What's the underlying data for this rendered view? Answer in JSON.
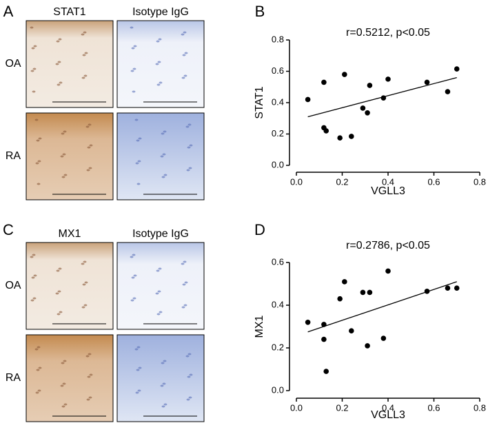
{
  "figure": {
    "panels": [
      "A",
      "B",
      "C",
      "D"
    ],
    "ihc": [
      {
        "columns": [
          "STAT1",
          "Isotype IgG"
        ],
        "rows": [
          "OA",
          "RA"
        ]
      },
      {
        "columns": [
          "MX1",
          "Isotype IgG"
        ],
        "rows": [
          "OA",
          "RA"
        ]
      }
    ]
  },
  "chart_data": [
    {
      "type": "scatter",
      "title": "r=0.5212, p<0.05",
      "x_label": "VGLL3",
      "y_label": "STAT1",
      "color": "#000000",
      "x": [
        0.05,
        0.12,
        0.12,
        0.13,
        0.19,
        0.21,
        0.24,
        0.29,
        0.31,
        0.32,
        0.38,
        0.4,
        0.57,
        0.66,
        0.7
      ],
      "y": [
        0.42,
        0.53,
        0.24,
        0.22,
        0.175,
        0.58,
        0.185,
        0.365,
        0.335,
        0.51,
        0.43,
        0.55,
        0.53,
        0.47,
        0.615
      ],
      "trendline": {
        "x": [
          0.05,
          0.7
        ],
        "y": [
          0.31,
          0.56
        ]
      },
      "xlim": [
        0,
        0.8
      ],
      "xticks": [
        {
          "value": 0,
          "label": "0.0"
        },
        0.2,
        0.4,
        0.6,
        0.8
      ],
      "ylim": [
        0,
        0.8
      ],
      "yticks": [
        {
          "value": 0,
          "label": "0.0"
        },
        0.2,
        0.4,
        0.6,
        0.8
      ]
    },
    {
      "type": "scatter",
      "title": "r=0.2786, p<0.05",
      "x_label": "VGLL3",
      "y_label": "MX1",
      "color": "#000000",
      "x": [
        0.05,
        0.12,
        0.12,
        0.13,
        0.19,
        0.21,
        0.24,
        0.29,
        0.31,
        0.32,
        0.38,
        0.4,
        0.57,
        0.66,
        0.7
      ],
      "y": [
        0.32,
        0.24,
        0.31,
        0.09,
        0.43,
        0.51,
        0.28,
        0.46,
        0.21,
        0.46,
        0.245,
        0.56,
        0.465,
        0.48,
        0.48
      ],
      "trendline": {
        "x": [
          0.05,
          0.7
        ],
        "y": [
          0.275,
          0.51
        ]
      },
      "xlim": [
        0,
        0.8
      ],
      "xticks": [
        {
          "value": 0,
          "label": "0.0"
        },
        0.2,
        0.4,
        0.6,
        0.8
      ],
      "ylim": [
        0,
        0.6
      ],
      "yticks": [
        {
          "value": 0,
          "label": "0.0"
        },
        0.2,
        0.4,
        0.6
      ]
    }
  ]
}
